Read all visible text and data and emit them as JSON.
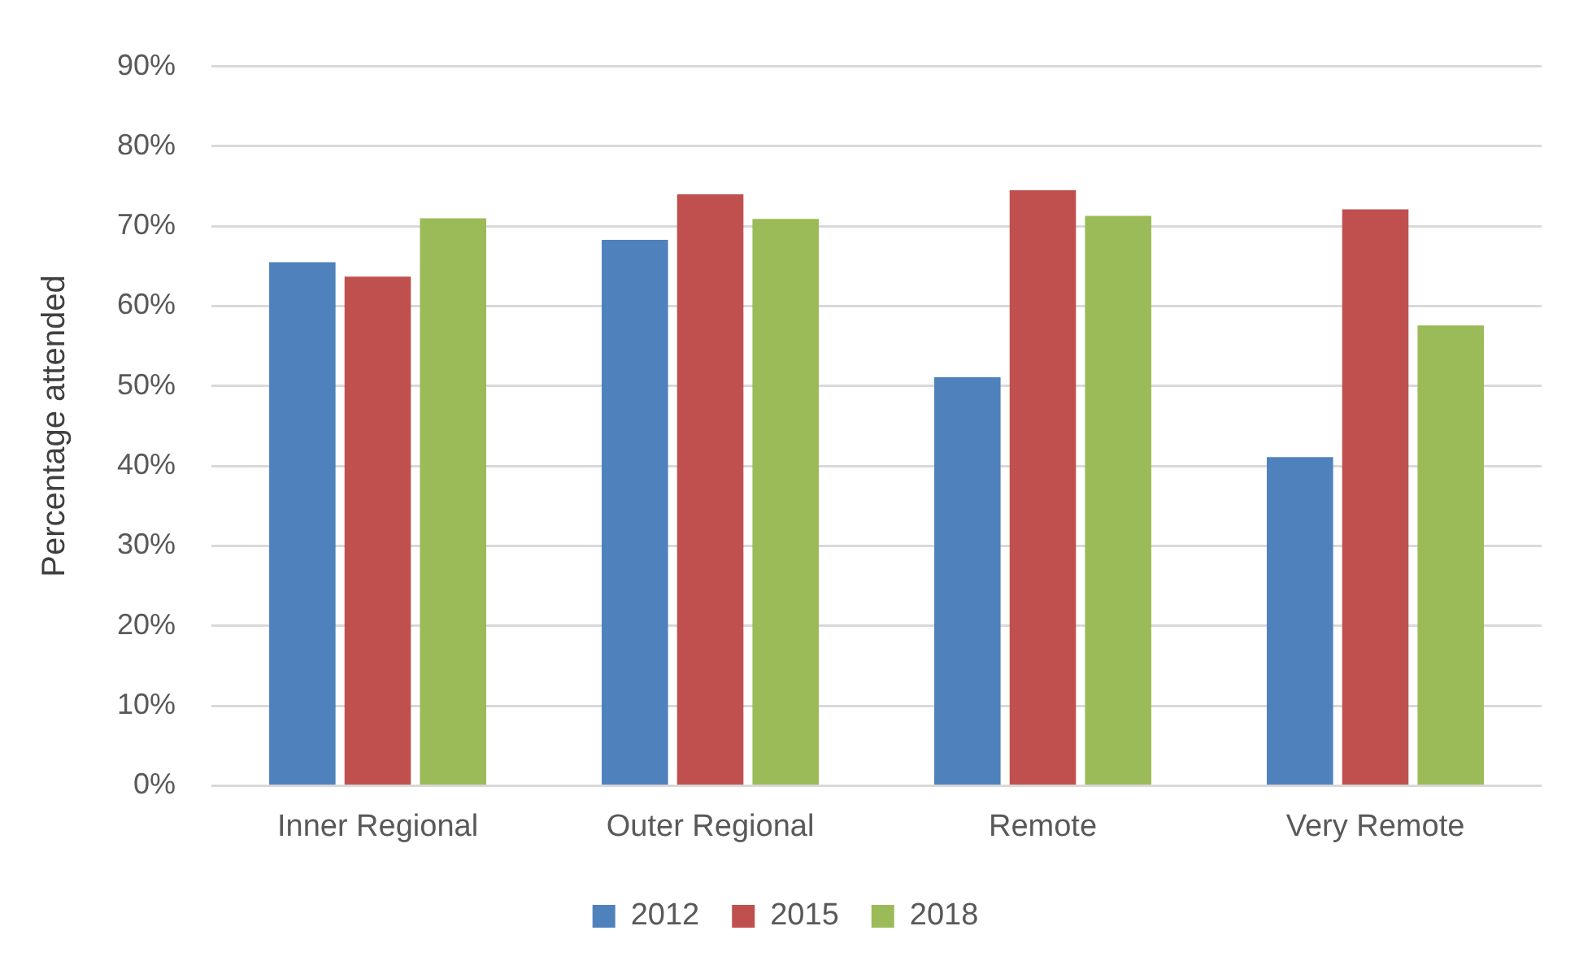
{
  "chart_data": {
    "type": "bar",
    "ylabel": "Percentage attended",
    "categories": [
      "Inner Regional",
      "Outer Regional",
      "Remote",
      "Very Remote"
    ],
    "series": [
      {
        "name": "2012",
        "color": "#4f81bd",
        "values": [
          65.5,
          68.3,
          51.1,
          41.1
        ]
      },
      {
        "name": "2015",
        "color": "#c0504d",
        "values": [
          63.7,
          74.0,
          74.5,
          72.1
        ]
      },
      {
        "name": "2018",
        "color": "#9bbb59",
        "values": [
          71.0,
          70.9,
          71.3,
          57.6
        ]
      }
    ],
    "ylim": [
      0,
      90
    ],
    "yticks": [
      {
        "value": 0,
        "label": "0%"
      },
      {
        "value": 10,
        "label": "10%"
      },
      {
        "value": 20,
        "label": "20%"
      },
      {
        "value": 30,
        "label": "30%"
      },
      {
        "value": 40,
        "label": "40%"
      },
      {
        "value": 50,
        "label": "50%"
      },
      {
        "value": 60,
        "label": "60%"
      },
      {
        "value": 70,
        "label": "70%"
      },
      {
        "value": 80,
        "label": "80%"
      },
      {
        "value": 90,
        "label": "90%"
      }
    ],
    "grid": "y",
    "legend": "bottom"
  }
}
